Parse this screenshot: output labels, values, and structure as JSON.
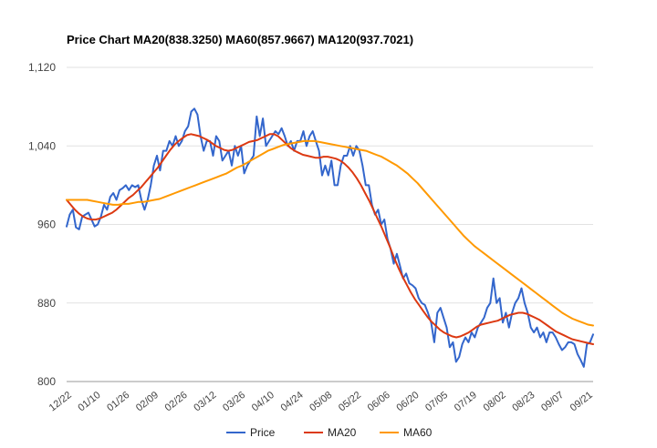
{
  "chart_data": {
    "type": "line",
    "title": "Price Chart MA20(838.3250) MA60(857.9667) MA120(937.7021)",
    "xlabel": "",
    "ylabel": "",
    "ylim": [
      800,
      1120
    ],
    "y_ticks": [
      "1,120",
      "1,040",
      "960",
      "880",
      "800"
    ],
    "y_tick_values": [
      1120,
      1040,
      960,
      880,
      800
    ],
    "x_ticks": [
      "12/22",
      "01/10",
      "01/26",
      "02/09",
      "02/26",
      "03/12",
      "03/26",
      "04/10",
      "04/24",
      "05/08",
      "05/22",
      "06/06",
      "06/20",
      "07/05",
      "07/19",
      "08/02",
      "08/23",
      "09/07",
      "09/21"
    ],
    "grid": true,
    "legend_position": "bottom",
    "colors": {
      "Price": "#3366cc",
      "MA20": "#dc3912",
      "MA60": "#ff9900"
    },
    "series": [
      {
        "name": "Price",
        "values": [
          958,
          970,
          975,
          957,
          955,
          968,
          970,
          972,
          965,
          958,
          960,
          968,
          980,
          975,
          988,
          992,
          985,
          995,
          997,
          1000,
          995,
          1000,
          998,
          1000,
          985,
          975,
          985,
          1000,
          1020,
          1030,
          1015,
          1035,
          1035,
          1045,
          1040,
          1050,
          1040,
          1045,
          1055,
          1060,
          1075,
          1078,
          1072,
          1050,
          1035,
          1045,
          1045,
          1030,
          1050,
          1045,
          1025,
          1030,
          1035,
          1020,
          1040,
          1030,
          1040,
          1012,
          1020,
          1025,
          1030,
          1070,
          1050,
          1068,
          1040,
          1045,
          1050,
          1055,
          1052,
          1058,
          1050,
          1040,
          1045,
          1035,
          1045,
          1045,
          1055,
          1040,
          1050,
          1055,
          1045,
          1035,
          1010,
          1020,
          1010,
          1025,
          1000,
          1000,
          1020,
          1030,
          1030,
          1040,
          1030,
          1040,
          1035,
          1020,
          1000,
          1000,
          980,
          970,
          975,
          960,
          965,
          945,
          935,
          920,
          930,
          918,
          905,
          910,
          900,
          898,
          895,
          885,
          880,
          878,
          870,
          860,
          840,
          870,
          875,
          865,
          855,
          835,
          840,
          820,
          825,
          838,
          845,
          840,
          850,
          845,
          855,
          860,
          865,
          875,
          880,
          905,
          880,
          885,
          860,
          870,
          855,
          870,
          880,
          885,
          895,
          880,
          870,
          855,
          850,
          855,
          845,
          850,
          840,
          850,
          850,
          845,
          838,
          832,
          835,
          840,
          840,
          838,
          828,
          822,
          815,
          838,
          840,
          848
        ]
      },
      {
        "name": "MA20",
        "values": [
          985,
          980,
          975,
          971,
          968,
          966,
          965,
          965,
          966,
          968,
          970,
          972,
          975,
          979,
          983,
          987,
          990,
          994,
          998,
          1003,
          1008,
          1013,
          1018,
          1024,
          1030,
          1036,
          1041,
          1045,
          1048,
          1051,
          1052,
          1051,
          1050,
          1048,
          1046,
          1043,
          1040,
          1038,
          1036,
          1035,
          1036,
          1038,
          1040,
          1042,
          1044,
          1045,
          1046,
          1048,
          1050,
          1052,
          1052,
          1050,
          1046,
          1042,
          1038,
          1035,
          1033,
          1031,
          1030,
          1029,
          1028,
          1028,
          1029,
          1029,
          1028,
          1027,
          1025,
          1022,
          1018,
          1013,
          1007,
          1000,
          992,
          984,
          975,
          966,
          957,
          947,
          937,
          926,
          916,
          907,
          899,
          891,
          884,
          878,
          872,
          866,
          861,
          857,
          853,
          850,
          848,
          846,
          845,
          846,
          848,
          850,
          853,
          856,
          858,
          859,
          860,
          861,
          862,
          864,
          866,
          868,
          869,
          870,
          870,
          869,
          867,
          865,
          863,
          860,
          857,
          854,
          851,
          849,
          847,
          845,
          843,
          842,
          841,
          840,
          839,
          838
        ]
      },
      {
        "name": "MA60",
        "values": [
          985,
          985,
          985,
          985,
          985,
          984,
          983,
          982,
          981,
          980,
          980,
          981,
          981,
          982,
          983,
          983,
          984,
          985,
          986,
          988,
          990,
          992,
          994,
          996,
          998,
          1000,
          1002,
          1004,
          1006,
          1008,
          1010,
          1012,
          1015,
          1018,
          1020,
          1023,
          1026,
          1029,
          1032,
          1035,
          1037,
          1039,
          1041,
          1042,
          1043,
          1044,
          1045,
          1045,
          1045,
          1044,
          1043,
          1042,
          1041,
          1040,
          1039,
          1038,
          1037,
          1036,
          1035,
          1033,
          1031,
          1029,
          1026,
          1023,
          1020,
          1016,
          1012,
          1007,
          1002,
          996,
          990,
          984,
          978,
          972,
          966,
          960,
          954,
          948,
          943,
          938,
          934,
          930,
          926,
          922,
          918,
          914,
          910,
          906,
          902,
          898,
          894,
          890,
          886,
          882,
          878,
          874,
          870,
          867,
          864,
          862,
          860,
          858,
          857
        ]
      }
    ]
  }
}
